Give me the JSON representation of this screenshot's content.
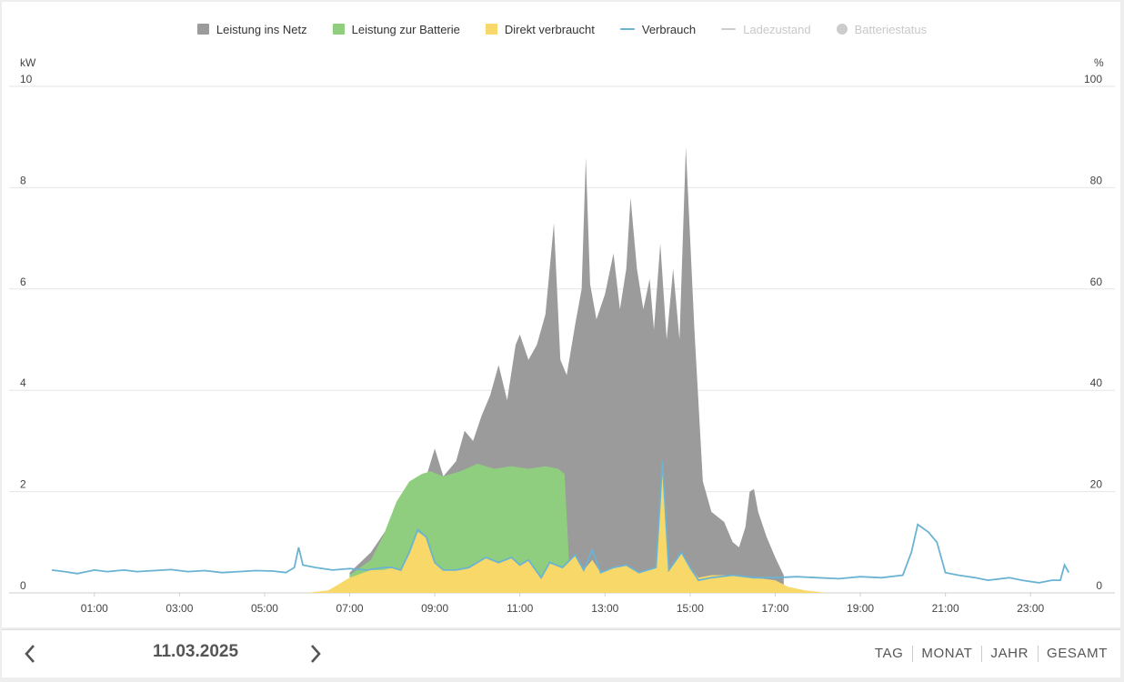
{
  "legend": [
    {
      "label": "Leistung ins Netz",
      "color": "#9b9b9b",
      "kind": "box",
      "enabled": true
    },
    {
      "label": "Leistung zur Batterie",
      "color": "#8fce7e",
      "kind": "box",
      "enabled": true
    },
    {
      "label": "Direkt verbraucht",
      "color": "#f8d868",
      "kind": "box",
      "enabled": true
    },
    {
      "label": "Verbrauch",
      "color": "#6bb3d2",
      "kind": "line",
      "enabled": true
    },
    {
      "label": "Ladezustand",
      "color": "#cccccc",
      "kind": "line",
      "enabled": false
    },
    {
      "label": "Batteriestatus",
      "color": "#cccccc",
      "kind": "dot",
      "enabled": false
    }
  ],
  "axes": {
    "left_unit": "kW",
    "right_unit": "%"
  },
  "chart_data": {
    "type": "area",
    "x_unit": "hour",
    "x_ticks": [
      "01:00",
      "03:00",
      "05:00",
      "07:00",
      "09:00",
      "11:00",
      "13:00",
      "15:00",
      "17:00",
      "19:00",
      "21:00",
      "23:00"
    ],
    "x_tick_values": [
      1,
      3,
      5,
      7,
      9,
      11,
      13,
      15,
      17,
      19,
      21,
      23
    ],
    "xlim": [
      0,
      24
    ],
    "y_left": {
      "label": "kW",
      "ticks": [
        0,
        2,
        4,
        6,
        8,
        10
      ],
      "lim": [
        0,
        10
      ]
    },
    "y_right": {
      "label": "%",
      "ticks": [
        0,
        20,
        40,
        60,
        80,
        100
      ],
      "lim": [
        0,
        100
      ]
    },
    "grid": true,
    "legend_position": "top-center",
    "stacked": true,
    "series": [
      {
        "name": "Direkt verbraucht",
        "kind": "area",
        "color": "#f8d868",
        "points": [
          [
            6.0,
            0
          ],
          [
            6.5,
            0.05
          ],
          [
            7.0,
            0.3
          ],
          [
            7.5,
            0.45
          ],
          [
            7.8,
            0.45
          ],
          [
            8.0,
            0.5
          ],
          [
            8.2,
            0.45
          ],
          [
            8.4,
            0.8
          ],
          [
            8.6,
            1.2
          ],
          [
            8.8,
            1.1
          ],
          [
            9.0,
            0.6
          ],
          [
            9.2,
            0.45
          ],
          [
            9.5,
            0.45
          ],
          [
            9.8,
            0.5
          ],
          [
            10.0,
            0.6
          ],
          [
            10.2,
            0.7
          ],
          [
            10.5,
            0.6
          ],
          [
            10.8,
            0.7
          ],
          [
            11.0,
            0.55
          ],
          [
            11.2,
            0.65
          ],
          [
            11.5,
            0.3
          ],
          [
            11.7,
            0.6
          ],
          [
            12.0,
            0.5
          ],
          [
            12.3,
            0.75
          ],
          [
            12.5,
            0.45
          ],
          [
            12.7,
            0.65
          ],
          [
            12.9,
            0.4
          ],
          [
            13.2,
            0.5
          ],
          [
            13.5,
            0.55
          ],
          [
            13.8,
            0.4
          ],
          [
            14.2,
            0.5
          ],
          [
            14.35,
            2.6
          ],
          [
            14.5,
            0.45
          ],
          [
            14.8,
            0.8
          ],
          [
            15.0,
            0.5
          ],
          [
            15.2,
            0.3
          ],
          [
            15.5,
            0.35
          ],
          [
            16.0,
            0.35
          ],
          [
            16.5,
            0.3
          ],
          [
            17.0,
            0.25
          ],
          [
            17.3,
            0.12
          ],
          [
            17.7,
            0.05
          ],
          [
            18.2,
            0
          ]
        ]
      },
      {
        "name": "Leistung zur Batterie",
        "kind": "area",
        "color": "#8fce7e",
        "points": [
          [
            7.0,
            0.35
          ],
          [
            7.5,
            0.65
          ],
          [
            7.8,
            1.15
          ],
          [
            8.1,
            1.8
          ],
          [
            8.4,
            2.2
          ],
          [
            8.7,
            2.35
          ],
          [
            8.9,
            2.4
          ],
          [
            9.2,
            2.3
          ],
          [
            9.6,
            2.4
          ],
          [
            10.0,
            2.55
          ],
          [
            10.4,
            2.45
          ],
          [
            10.8,
            2.5
          ],
          [
            11.2,
            2.45
          ],
          [
            11.6,
            2.5
          ],
          [
            11.9,
            2.45
          ],
          [
            12.05,
            2.35
          ],
          [
            12.15,
            0.7
          ]
        ]
      },
      {
        "name": "Leistung ins Netz",
        "kind": "area",
        "color": "#9b9b9b",
        "points": [
          [
            7.0,
            0.4
          ],
          [
            7.5,
            0.8
          ],
          [
            7.9,
            1.3
          ],
          [
            8.2,
            1.7
          ],
          [
            8.5,
            2.0
          ],
          [
            8.8,
            2.3
          ],
          [
            9.0,
            2.85
          ],
          [
            9.2,
            2.3
          ],
          [
            9.5,
            2.6
          ],
          [
            9.7,
            3.2
          ],
          [
            9.9,
            3.0
          ],
          [
            10.1,
            3.5
          ],
          [
            10.3,
            3.9
          ],
          [
            10.5,
            4.5
          ],
          [
            10.7,
            3.8
          ],
          [
            10.9,
            4.9
          ],
          [
            11.0,
            5.1
          ],
          [
            11.2,
            4.6
          ],
          [
            11.4,
            4.9
          ],
          [
            11.6,
            5.5
          ],
          [
            11.8,
            7.3
          ],
          [
            11.95,
            4.6
          ],
          [
            12.1,
            4.3
          ],
          [
            12.3,
            5.3
          ],
          [
            12.45,
            6.0
          ],
          [
            12.55,
            8.6
          ],
          [
            12.65,
            6.1
          ],
          [
            12.8,
            5.4
          ],
          [
            13.0,
            5.9
          ],
          [
            13.2,
            6.7
          ],
          [
            13.35,
            5.6
          ],
          [
            13.5,
            6.4
          ],
          [
            13.6,
            7.8
          ],
          [
            13.75,
            6.4
          ],
          [
            13.9,
            5.6
          ],
          [
            14.05,
            6.2
          ],
          [
            14.15,
            5.2
          ],
          [
            14.3,
            6.9
          ],
          [
            14.45,
            5.0
          ],
          [
            14.6,
            6.4
          ],
          [
            14.75,
            5.0
          ],
          [
            14.9,
            8.8
          ],
          [
            15.1,
            5.2
          ],
          [
            15.3,
            2.2
          ],
          [
            15.5,
            1.6
          ],
          [
            15.8,
            1.4
          ],
          [
            16.0,
            1.0
          ],
          [
            16.15,
            0.9
          ],
          [
            16.3,
            1.3
          ],
          [
            16.4,
            2.0
          ],
          [
            16.5,
            2.05
          ],
          [
            16.6,
            1.6
          ],
          [
            16.8,
            1.1
          ],
          [
            17.0,
            0.7
          ],
          [
            17.2,
            0.35
          ]
        ]
      },
      {
        "name": "Verbrauch",
        "kind": "line",
        "color": "#6bb3d2",
        "points": [
          [
            0.0,
            0.45
          ],
          [
            0.3,
            0.42
          ],
          [
            0.6,
            0.38
          ],
          [
            1.0,
            0.45
          ],
          [
            1.3,
            0.42
          ],
          [
            1.7,
            0.45
          ],
          [
            2.0,
            0.42
          ],
          [
            2.4,
            0.44
          ],
          [
            2.8,
            0.46
          ],
          [
            3.2,
            0.42
          ],
          [
            3.6,
            0.44
          ],
          [
            4.0,
            0.4
          ],
          [
            4.4,
            0.42
          ],
          [
            4.8,
            0.44
          ],
          [
            5.2,
            0.43
          ],
          [
            5.5,
            0.4
          ],
          [
            5.7,
            0.5
          ],
          [
            5.8,
            0.9
          ],
          [
            5.9,
            0.55
          ],
          [
            6.2,
            0.5
          ],
          [
            6.6,
            0.45
          ],
          [
            7.0,
            0.48
          ],
          [
            7.4,
            0.45
          ],
          [
            7.8,
            0.5
          ],
          [
            8.0,
            0.5
          ],
          [
            8.2,
            0.45
          ],
          [
            8.4,
            0.8
          ],
          [
            8.6,
            1.25
          ],
          [
            8.8,
            1.1
          ],
          [
            9.0,
            0.6
          ],
          [
            9.2,
            0.45
          ],
          [
            9.5,
            0.45
          ],
          [
            9.8,
            0.5
          ],
          [
            10.0,
            0.6
          ],
          [
            10.2,
            0.7
          ],
          [
            10.5,
            0.6
          ],
          [
            10.8,
            0.7
          ],
          [
            11.0,
            0.55
          ],
          [
            11.2,
            0.65
          ],
          [
            11.5,
            0.3
          ],
          [
            11.7,
            0.6
          ],
          [
            12.0,
            0.5
          ],
          [
            12.3,
            0.75
          ],
          [
            12.5,
            0.45
          ],
          [
            12.7,
            0.85
          ],
          [
            12.9,
            0.4
          ],
          [
            13.2,
            0.5
          ],
          [
            13.5,
            0.55
          ],
          [
            13.8,
            0.4
          ],
          [
            14.2,
            0.5
          ],
          [
            14.35,
            2.6
          ],
          [
            14.5,
            0.45
          ],
          [
            14.8,
            0.8
          ],
          [
            15.0,
            0.5
          ],
          [
            15.2,
            0.25
          ],
          [
            15.5,
            0.3
          ],
          [
            16.0,
            0.35
          ],
          [
            16.5,
            0.3
          ],
          [
            17.0,
            0.3
          ],
          [
            17.5,
            0.32
          ],
          [
            18.0,
            0.3
          ],
          [
            18.5,
            0.28
          ],
          [
            19.0,
            0.32
          ],
          [
            19.5,
            0.3
          ],
          [
            20.0,
            0.35
          ],
          [
            20.2,
            0.8
          ],
          [
            20.35,
            1.35
          ],
          [
            20.6,
            1.2
          ],
          [
            20.8,
            1.0
          ],
          [
            21.0,
            0.4
          ],
          [
            21.3,
            0.35
          ],
          [
            21.7,
            0.3
          ],
          [
            22.0,
            0.25
          ],
          [
            22.5,
            0.3
          ],
          [
            22.8,
            0.25
          ],
          [
            23.2,
            0.2
          ],
          [
            23.5,
            0.25
          ],
          [
            23.7,
            0.25
          ],
          [
            23.8,
            0.55
          ],
          [
            23.9,
            0.4
          ]
        ]
      }
    ]
  },
  "footer": {
    "date": "11.03.2025",
    "prev_icon": "chevron-left-icon",
    "next_icon": "chevron-right-icon",
    "tabs": [
      {
        "label": "TAG",
        "active": true
      },
      {
        "label": "MONAT",
        "active": false
      },
      {
        "label": "JAHR",
        "active": false
      },
      {
        "label": "GESAMT",
        "active": false
      }
    ]
  }
}
